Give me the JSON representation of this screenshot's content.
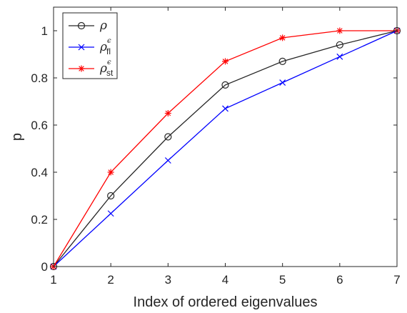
{
  "chart_data": {
    "type": "line",
    "xlabel": "Index of ordered eigenvalues",
    "ylabel": "p",
    "xlim": [
      1,
      7
    ],
    "ylim": [
      0,
      1.1
    ],
    "x": [
      1,
      2,
      3,
      4,
      5,
      6,
      7
    ],
    "xticks": [
      "1",
      "2",
      "3",
      "4",
      "5",
      "6",
      "7"
    ],
    "yticks": [
      "0",
      "0.2",
      "0.4",
      "0.6",
      "0.8",
      "1"
    ],
    "yticks_values": [
      0,
      0.2,
      0.4,
      0.6,
      0.8,
      1
    ],
    "grid": false,
    "legend_position": "top-left",
    "series": [
      {
        "key": "rho",
        "legend_symbol": "ρ",
        "legend_superscript": "",
        "legend_subscript": "",
        "color": "#262626",
        "marker": "circle",
        "values": [
          0,
          0.3,
          0.55,
          0.77,
          0.87,
          0.94,
          1.0
        ]
      },
      {
        "key": "rho-fl",
        "legend_symbol": "ρ",
        "legend_superscript": "ϵ",
        "legend_subscript": "fl",
        "color": "#0000ff",
        "marker": "x",
        "values": [
          0,
          0.225,
          0.45,
          0.67,
          0.78,
          0.89,
          1.0
        ]
      },
      {
        "key": "rho-st",
        "legend_symbol": "ρ",
        "legend_superscript": "ϵ",
        "legend_subscript": "st",
        "color": "#ff0000",
        "marker": "star",
        "values": [
          0,
          0.4,
          0.65,
          0.87,
          0.97,
          1.0,
          1.0
        ]
      }
    ]
  }
}
